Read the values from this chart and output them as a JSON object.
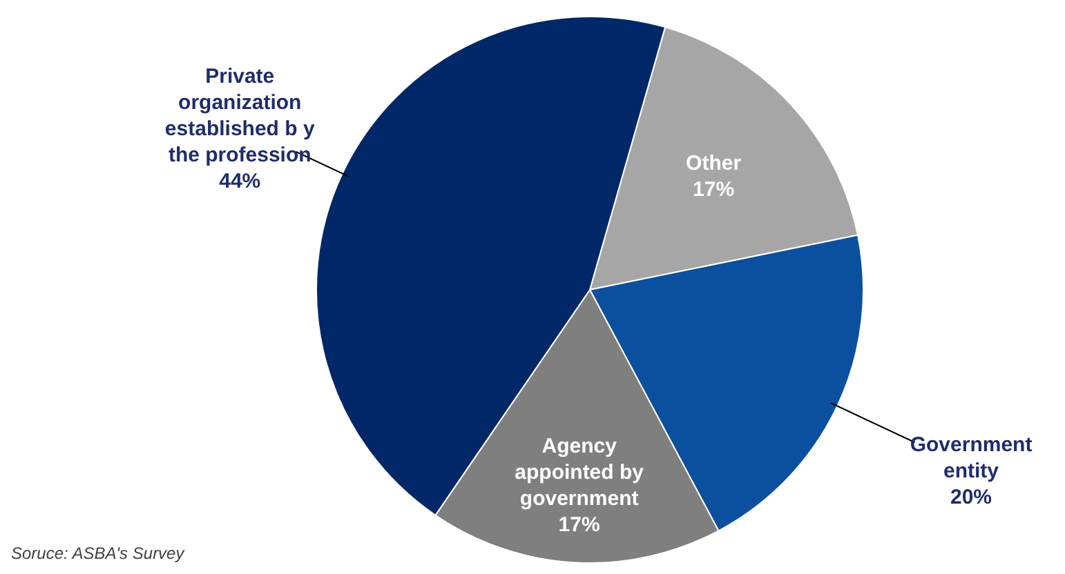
{
  "chart_data": {
    "type": "pie",
    "categories": [
      "Other",
      "Government entity",
      "Agency appointed by government",
      "Private organization established b y the profession"
    ],
    "values": [
      17,
      20,
      17,
      44
    ],
    "value_labels": [
      "17%",
      "20%",
      "17%",
      "44%"
    ],
    "colors": [
      "#a6a6a6",
      "#0a509e",
      "#7f7f7f",
      "#002868"
    ],
    "annotations": [
      "Soruce:  ASBA's Survey"
    ]
  }
}
